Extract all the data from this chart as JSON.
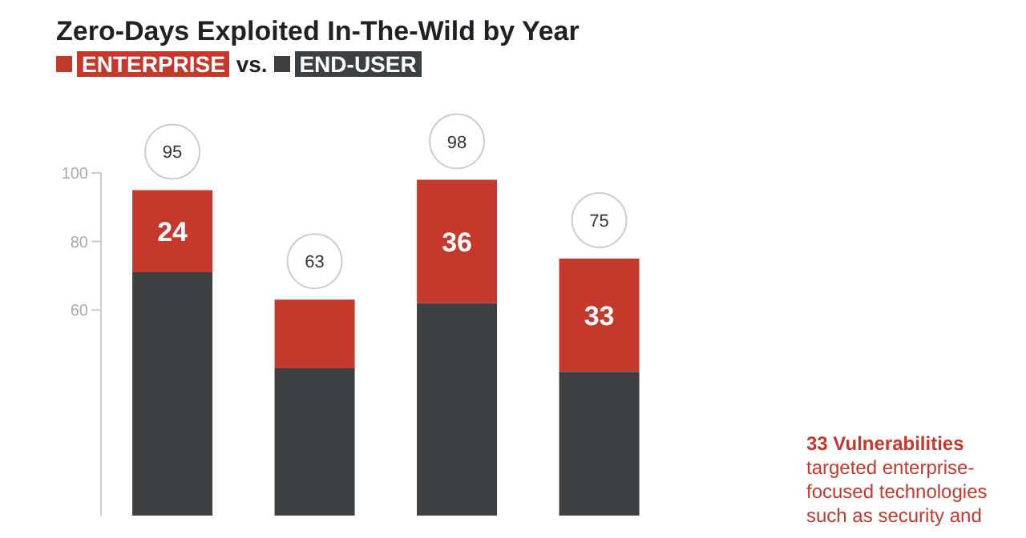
{
  "chart_data": {
    "type": "bar",
    "title": "Zero-Days Exploited In-The-Wild by Year",
    "subtitle": "vs.",
    "categories": [
      null,
      null,
      null,
      null
    ],
    "stacked": true,
    "series": [
      {
        "name": "END-USER",
        "color": "#3c4043",
        "values": [
          71,
          43,
          62,
          42
        ]
      },
      {
        "name": "ENTERPRISE",
        "color": "#c5392c",
        "values": [
          24,
          20,
          36,
          33
        ],
        "value_labels": [
          "24",
          null,
          "36",
          "33"
        ]
      }
    ],
    "totals": [
      "95",
      "63",
      "98",
      "75"
    ],
    "ylim": [
      0,
      100
    ],
    "yticks": [
      60,
      80,
      100
    ],
    "grid": false,
    "legend": "top left",
    "tick_labels": "y",
    "annotations": [
      "33 Vulnerabilities",
      "targeted enterprise-focused technologies such as security and"
    ]
  }
}
